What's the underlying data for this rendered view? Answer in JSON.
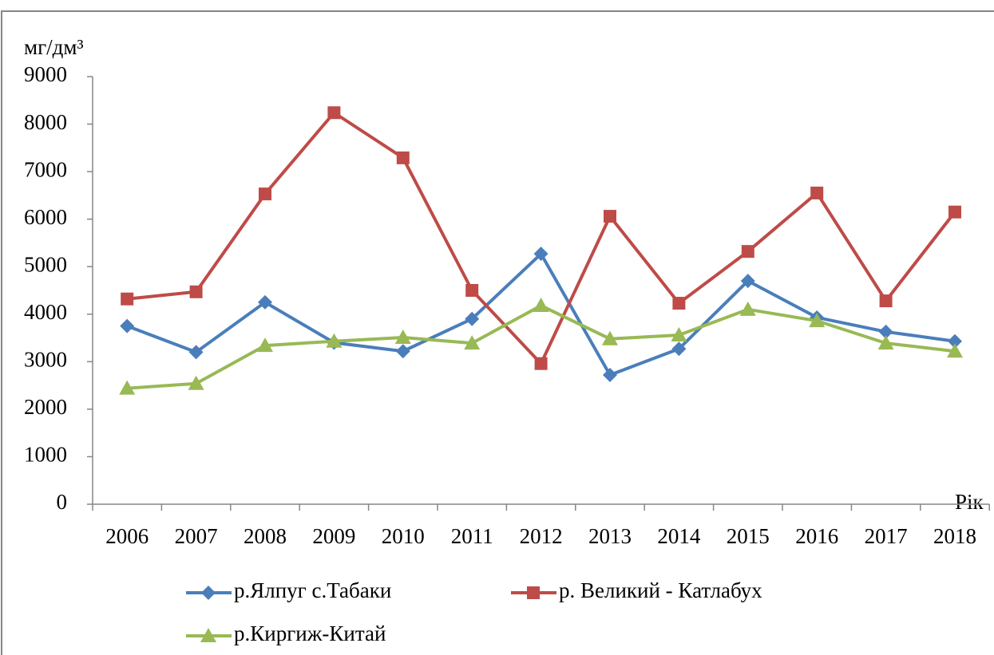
{
  "chart_data": {
    "type": "line",
    "y_axis_label": "мг/дм³",
    "x_axis_label": "Рік",
    "categories": [
      "2006",
      "2007",
      "2008",
      "2009",
      "2010",
      "2011",
      "2012",
      "2013",
      "2014",
      "2015",
      "2016",
      "2017",
      "2018"
    ],
    "series": [
      {
        "name": "р.Ялпуг  с.Табаки",
        "color": "#4a7ebb",
        "marker": "diamond",
        "values": [
          3750,
          3200,
          4250,
          3400,
          3220,
          3900,
          5270,
          2720,
          3270,
          4700,
          3930,
          3630,
          3430
        ]
      },
      {
        "name": "р. Великий - Катлабух",
        "color": "#be4b48",
        "marker": "square",
        "values": [
          4320,
          4470,
          6530,
          8240,
          7290,
          4500,
          2960,
          6060,
          4230,
          5320,
          6550,
          4280,
          6150
        ]
      },
      {
        "name": "р.Киргиж-Китай",
        "color": "#98b954",
        "marker": "triangle",
        "values": [
          2440,
          2540,
          3340,
          3430,
          3510,
          3390,
          4180,
          3480,
          3560,
          4100,
          3860,
          3390,
          3220
        ]
      }
    ],
    "ylim": [
      0,
      9000
    ],
    "yticks": [
      0,
      1000,
      2000,
      3000,
      4000,
      5000,
      6000,
      7000,
      8000,
      9000
    ],
    "grid": false
  }
}
